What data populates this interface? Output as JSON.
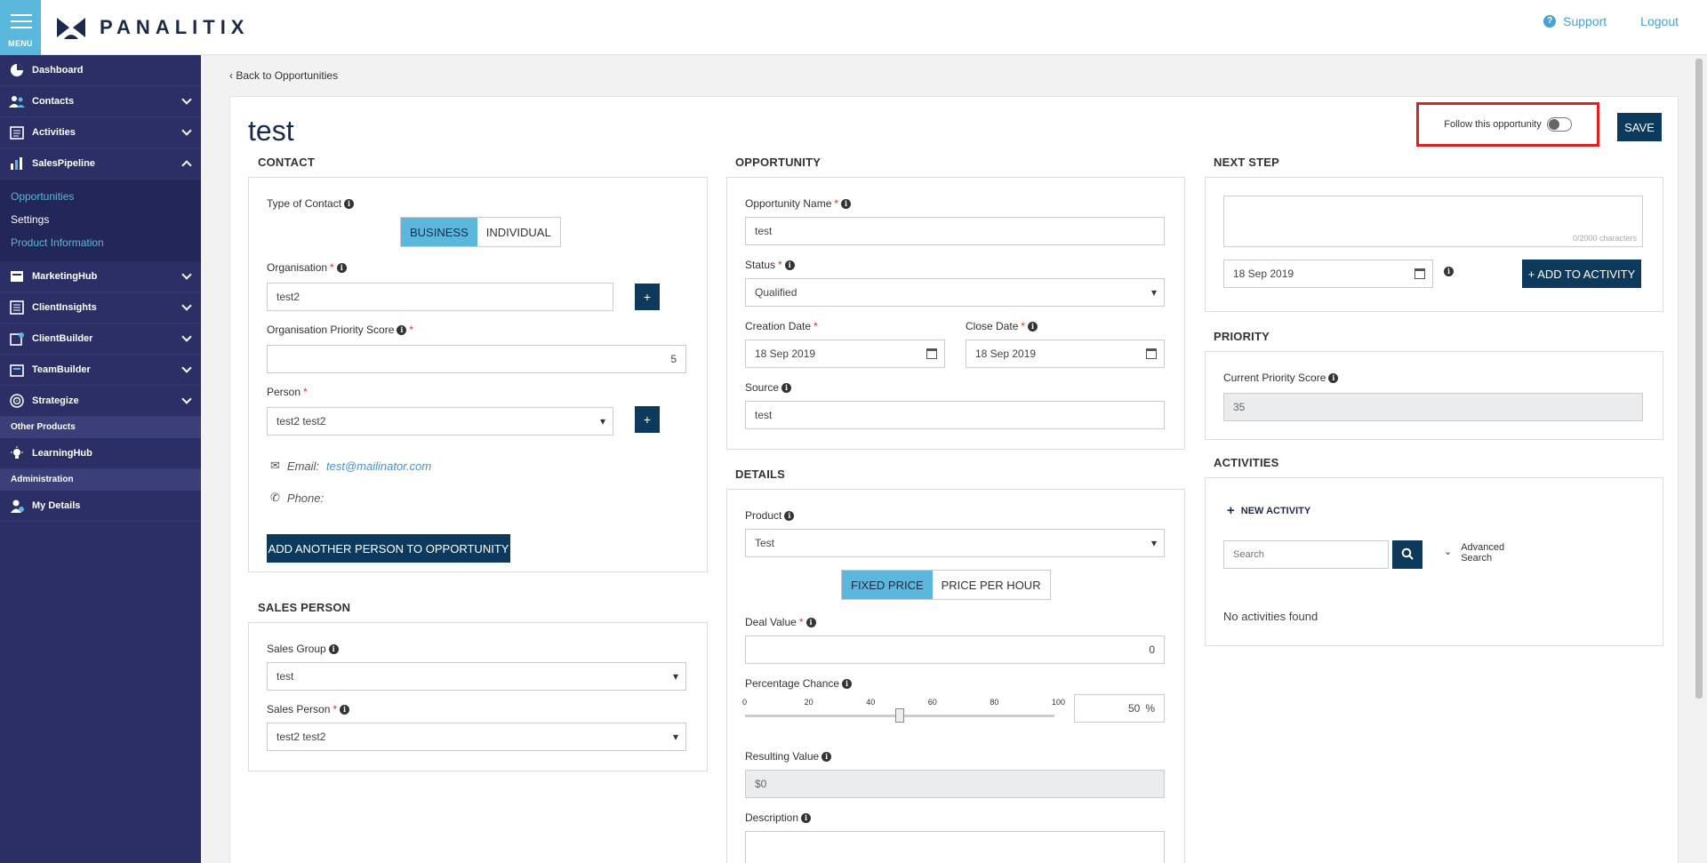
{
  "topbar": {
    "menu_label": "MENU",
    "logo_text": "PANALITIX",
    "support": "Support",
    "logout": "Logout"
  },
  "sidebar": {
    "items": [
      {
        "label": "Dashboard",
        "icon": "pie-chart-icon"
      },
      {
        "label": "Contacts",
        "icon": "contacts-icon"
      },
      {
        "label": "Activities",
        "icon": "activities-icon"
      },
      {
        "label": "SalesPipeline",
        "icon": "bar-chart-icon"
      }
    ],
    "sub_items": [
      "Opportunities",
      "Settings",
      "Product Information"
    ],
    "items2": [
      {
        "label": "MarketingHub",
        "icon": "marketing-icon"
      },
      {
        "label": "ClientInsights",
        "icon": "insights-icon"
      },
      {
        "label": "ClientBuilder",
        "icon": "builder-icon"
      },
      {
        "label": "TeamBuilder",
        "icon": "team-icon"
      },
      {
        "label": "Strategize",
        "icon": "target-icon"
      }
    ],
    "section_other": "Other Products",
    "learning": "LearningHub",
    "section_admin": "Administration",
    "my_details": "My Details"
  },
  "main": {
    "back": "Back to Opportunities",
    "title": "test",
    "follow_label": "Follow this opportunity",
    "save": "SAVE"
  },
  "contact": {
    "title": "CONTACT",
    "type_label": "Type of Contact",
    "type_business": "BUSINESS",
    "type_individual": "INDIVIDUAL",
    "org_label": "Organisation",
    "org_value": "test2",
    "priority_label": "Organisation Priority Score",
    "priority_value": "5",
    "person_label": "Person",
    "person_value": "test2 test2",
    "email_label": "Email:",
    "email_value": "test@mailinator.com",
    "phone_label": "Phone:",
    "add_person": "ADD ANOTHER PERSON TO OPPORTUNITY"
  },
  "sales_person": {
    "title": "SALES PERSON",
    "group_label": "Sales Group",
    "group_value": "test",
    "person_label": "Sales Person",
    "person_value": "test2 test2"
  },
  "opportunity": {
    "title": "OPPORTUNITY",
    "name_label": "Opportunity Name",
    "name_value": "test",
    "status_label": "Status",
    "status_value": "Qualified",
    "creation_label": "Creation Date",
    "creation_value": "18 Sep 2019",
    "close_label": "Close Date",
    "close_value": "18 Sep 2019",
    "source_label": "Source",
    "source_value": "test"
  },
  "details": {
    "title": "DETAILS",
    "product_label": "Product",
    "product_value": "Test",
    "fixed_price": "FIXED PRICE",
    "price_per_hour": "PRICE PER HOUR",
    "deal_label": "Deal Value",
    "deal_value": "0",
    "pct_label": "Percentage Chance",
    "pct_ticks": [
      "0",
      "20",
      "40",
      "60",
      "80",
      "100"
    ],
    "pct_value": "50",
    "pct_unit": "%",
    "pct_fraction": 0.5,
    "result_label": "Resulting Value",
    "result_value": "$0",
    "desc_label": "Description"
  },
  "next_step": {
    "title": "NEXT STEP",
    "counter": "0/2000 characters",
    "date_value": "18 Sep 2019",
    "add_activity": "+ ADD TO ACTIVITY"
  },
  "priority": {
    "title": "PRIORITY",
    "score_label": "Current Priority Score",
    "score_value": "35"
  },
  "activities": {
    "title": "ACTIVITIES",
    "new_activity": "NEW ACTIVITY",
    "search_placeholder": "Search",
    "advanced_search_1": "Advanced",
    "advanced_search_2": "Search",
    "empty": "No activities found"
  }
}
